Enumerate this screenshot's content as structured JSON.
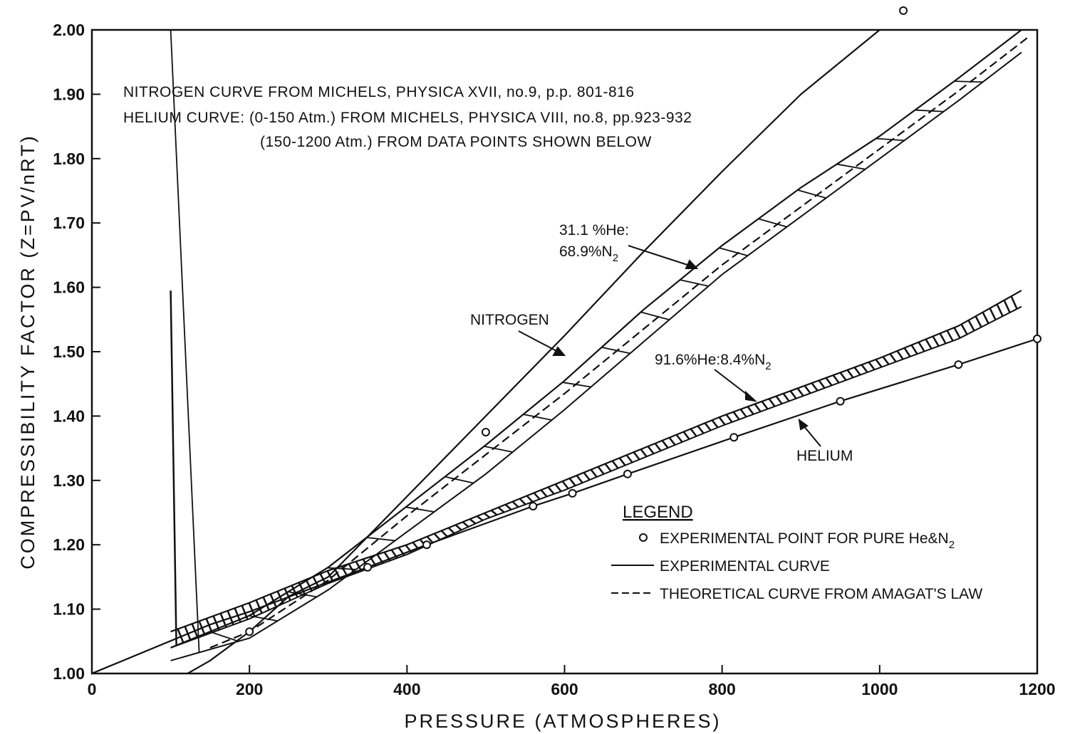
{
  "chart_data": {
    "type": "line",
    "xlabel": "PRESSURE (ATMOSPHERES)",
    "ylabel": "COMPRESSIBILITY FACTOR (Z=PV/nRT)",
    "xlim": [
      0,
      1200
    ],
    "ylim": [
      1.0,
      2.0
    ],
    "x_ticks": [
      "0",
      "200",
      "400",
      "600",
      "800",
      "1000",
      "1200"
    ],
    "y_ticks": [
      "1.00",
      "1.10",
      "1.20",
      "1.30",
      "1.40",
      "1.50",
      "1.60",
      "1.70",
      "1.80",
      "1.90",
      "2.00"
    ],
    "grid": false,
    "notes": [
      "NITROGEN CURVE FROM MICHELS, PHYSICA XVII, no.9, p.p. 801-816",
      "HELIUM CURVE: (0-150 Atm.) FROM MICHELS, PHYSICA VIII, no.8, pp.923-932",
      "(150-1200 Atm.) FROM DATA POINTS SHOWN BELOW"
    ],
    "curve_labels": {
      "mix31_line1": "31.1 %He:",
      "mix31_line2": "68.9%N",
      "mix31_sub": "2",
      "nitrogen": "NITROGEN",
      "mix91": "91.6%He:8.4%N",
      "mix91_sub": "2",
      "helium": "HELIUM"
    },
    "legend": {
      "title": "LEGEND",
      "point_entry": "EXPERIMENTAL POINT FOR PURE He&N",
      "point_entry_sub": "2",
      "solid_entry": "EXPERIMENTAL CURVE",
      "dashed_entry": "THEORETICAL CURVE FROM AMAGAT'S LAW"
    },
    "series": [
      {
        "name": "NITROGEN",
        "style": "solid",
        "x": [
          0,
          50,
          100,
          150,
          200,
          250,
          300,
          400,
          500,
          600,
          700,
          800,
          900,
          1000
        ],
        "y": [
          1.0,
          0.975,
          0.985,
          1.02,
          1.065,
          1.12,
          1.15,
          1.275,
          1.4,
          1.525,
          1.655,
          1.78,
          1.9,
          2.0
        ]
      },
      {
        "name": "HELIUM",
        "style": "solid",
        "x": [
          0,
          150,
          200,
          350,
          425,
          560,
          610,
          680,
          815,
          950,
          1100,
          1200
        ],
        "y": [
          1.0,
          1.076,
          1.096,
          1.165,
          1.2,
          1.26,
          1.28,
          1.31,
          1.367,
          1.423,
          1.48,
          1.52
        ]
      },
      {
        "name": "31.1 %He: 68.9%N2",
        "style": "solid-band",
        "x": [
          100,
          200,
          300,
          400,
          500,
          600,
          700,
          800,
          900,
          1000,
          1100,
          1180
        ],
        "y": [
          1.04,
          1.09,
          1.165,
          1.26,
          1.355,
          1.455,
          1.565,
          1.665,
          1.755,
          1.835,
          1.925,
          2.0
        ],
        "y_lower": [
          1.02,
          1.055,
          1.13,
          1.22,
          1.31,
          1.41,
          1.515,
          1.62,
          1.71,
          1.8,
          1.89,
          1.965
        ]
      },
      {
        "name": "31.1 %He: 68.9%N2 (Amagat)",
        "style": "dashed",
        "x": [
          150,
          200,
          300,
          400,
          500,
          600,
          700,
          800,
          900,
          1000,
          1100,
          1190
        ],
        "y": [
          1.04,
          1.065,
          1.145,
          1.245,
          1.34,
          1.435,
          1.535,
          1.635,
          1.725,
          1.815,
          1.905,
          1.99
        ]
      },
      {
        "name": "91.6%He:8.4%N2",
        "style": "hatched-band",
        "x": [
          100,
          200,
          300,
          400,
          500,
          600,
          700,
          800,
          900,
          1000,
          1100,
          1180
        ],
        "y": [
          1.065,
          1.11,
          1.16,
          1.2,
          1.25,
          1.3,
          1.35,
          1.4,
          1.445,
          1.49,
          1.54,
          1.595
        ],
        "y_lower": [
          1.04,
          1.085,
          1.14,
          1.185,
          1.24,
          1.285,
          1.335,
          1.385,
          1.43,
          1.475,
          1.52,
          1.57
        ]
      }
    ],
    "points": {
      "name": "EXPERIMENTAL POINT FOR PURE He&N2",
      "x": [
        200,
        350,
        425,
        500,
        560,
        610,
        680,
        815,
        950,
        1030,
        1100,
        1200
      ],
      "y": [
        1.065,
        1.165,
        1.2,
        1.375,
        1.26,
        1.28,
        1.31,
        1.367,
        1.423,
        2.03,
        1.48,
        1.52
      ]
    }
  }
}
